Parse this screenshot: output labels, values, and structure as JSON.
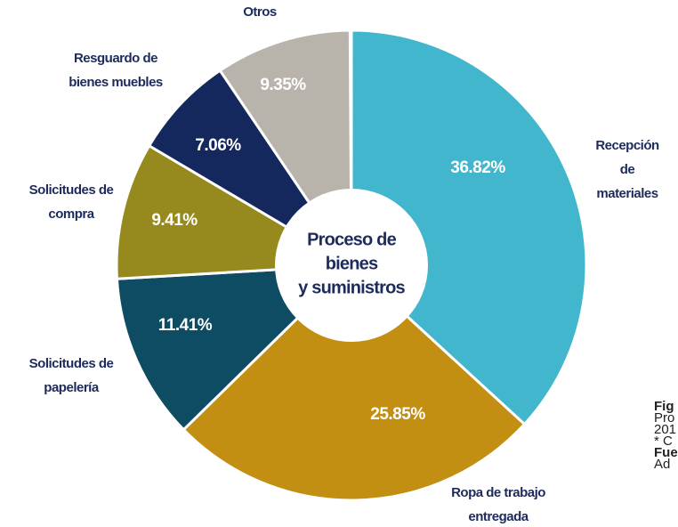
{
  "chart_data": {
    "type": "pie",
    "center_label": "Proceso de\nbienes\ny suministros",
    "categories": [
      "Recepción de\nmateriales",
      "Ropa de trabajo\nentregada",
      "Solicitudes de\npapelería",
      "Solicitudes de\ncompra",
      "Resguardo de\nbienes muebles",
      "Otros"
    ],
    "values": [
      36.82,
      25.85,
      11.41,
      9.41,
      7.06,
      9.35
    ],
    "value_labels": [
      "36.82%",
      "25.85%",
      "11.41%",
      "9.41%",
      "7.06%",
      "9.35%"
    ],
    "colors": [
      "#41b6cc",
      "#c38f12",
      "#0d4c62",
      "#968a1f",
      "#15285e",
      "#b8b4ac"
    ],
    "side_text": [
      "Fig",
      "Pro",
      "201",
      "* C",
      "Fue",
      "Ad"
    ]
  }
}
